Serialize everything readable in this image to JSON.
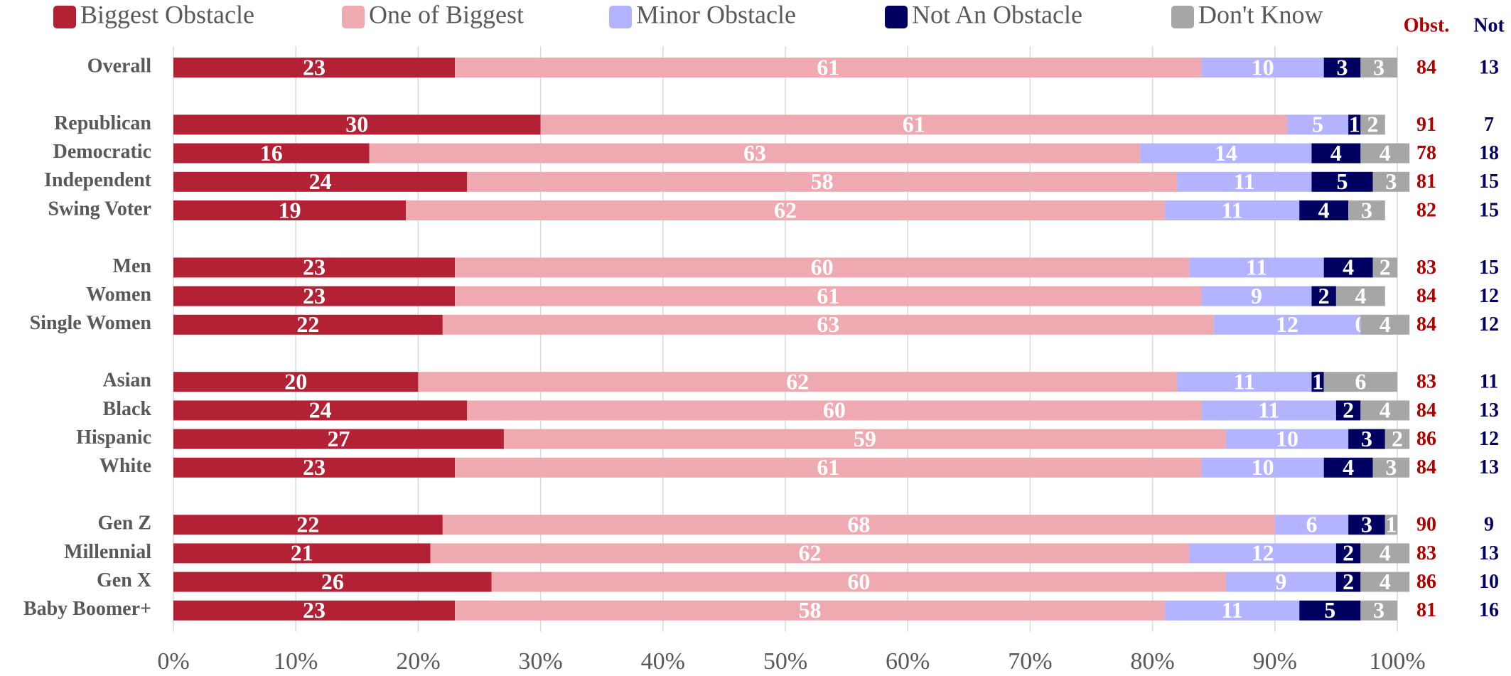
{
  "chart_data": {
    "type": "stacked_barh",
    "categories": [
      "Overall",
      "Republican",
      "Democratic",
      "Independent",
      "Swing Voter",
      "Men",
      "Women",
      "Single Women",
      "Asian",
      "Black",
      "Hispanic",
      "White",
      "Gen Z",
      "Millennial",
      "Gen X",
      "Baby Boomer+"
    ],
    "series": [
      {
        "name": "Biggest Obstacle",
        "color": "#b22234",
        "values": [
          23,
          30,
          16,
          24,
          19,
          23,
          23,
          22,
          20,
          24,
          27,
          23,
          22,
          21,
          26,
          23
        ]
      },
      {
        "name": "One of Biggest",
        "color": "#eeaab0",
        "values": [
          61,
          61,
          63,
          58,
          62,
          60,
          61,
          63,
          62,
          60,
          59,
          61,
          68,
          62,
          60,
          58
        ]
      },
      {
        "name": "Minor Obstacle",
        "color": "#b3b3ff",
        "values": [
          10,
          5,
          14,
          11,
          11,
          11,
          9,
          12,
          11,
          11,
          10,
          10,
          6,
          12,
          9,
          11
        ]
      },
      {
        "name": "Not An Obstacle",
        "color": "#000060",
        "values": [
          3,
          1,
          4,
          5,
          4,
          4,
          2,
          0,
          1,
          2,
          3,
          4,
          3,
          2,
          2,
          5
        ]
      },
      {
        "name": "Don't Know",
        "color": "#a6a6a6",
        "values": [
          3,
          2,
          4,
          3,
          3,
          2,
          4,
          4,
          6,
          4,
          2,
          3,
          1,
          4,
          4,
          3
        ]
      }
    ],
    "columns": [
      {
        "name": "Obst.",
        "color": "#b00000",
        "values": [
          84,
          91,
          78,
          81,
          82,
          83,
          84,
          84,
          83,
          84,
          86,
          84,
          90,
          83,
          86,
          81
        ]
      },
      {
        "name": "Not",
        "color": "#000060",
        "values": [
          13,
          7,
          18,
          15,
          15,
          15,
          12,
          12,
          11,
          13,
          12,
          13,
          9,
          13,
          10,
          16
        ]
      }
    ],
    "xlim": [
      0,
      100
    ],
    "xticks": [
      {
        "value": 0,
        "label": "0%"
      },
      {
        "value": 10,
        "label": "10%"
      },
      {
        "value": 20,
        "label": "20%"
      },
      {
        "value": 30,
        "label": "30%"
      },
      {
        "value": 40,
        "label": "40%"
      },
      {
        "value": 50,
        "label": "50%"
      },
      {
        "value": 60,
        "label": "60%"
      },
      {
        "value": 70,
        "label": "70%"
      },
      {
        "value": 80,
        "label": "80%"
      },
      {
        "value": 90,
        "label": "90%"
      },
      {
        "value": 100,
        "label": "100%"
      }
    ],
    "grid": true,
    "legend": "top"
  }
}
